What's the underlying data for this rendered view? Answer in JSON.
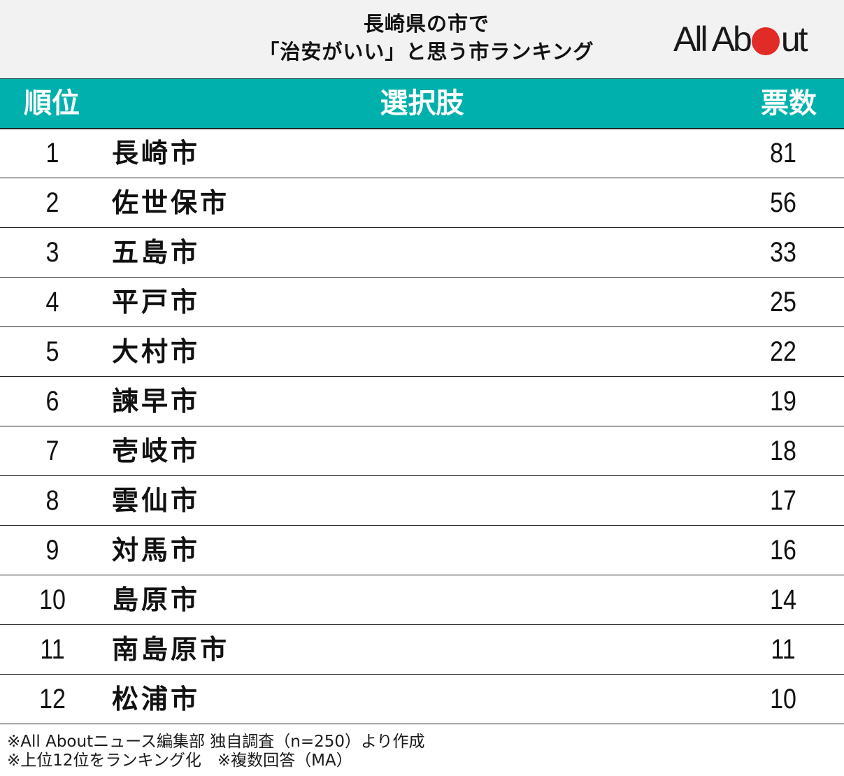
{
  "title": {
    "line1": "長崎県の市で",
    "line2": "「治安がいい」と思う市ランキング"
  },
  "logo": {
    "text_before": "All Ab",
    "text_after": "ut",
    "dot_color": "#e02b27"
  },
  "colors": {
    "header_bg": "#00b0ac",
    "band_bg": "#f2f2f2"
  },
  "table": {
    "headers": {
      "rank": "順位",
      "choice": "選択肢",
      "votes": "票数"
    },
    "rows": [
      {
        "rank": "1",
        "name": "長崎市",
        "votes": "81"
      },
      {
        "rank": "2",
        "name": "佐世保市",
        "votes": "56"
      },
      {
        "rank": "3",
        "name": "五島市",
        "votes": "33"
      },
      {
        "rank": "4",
        "name": "平戸市",
        "votes": "25"
      },
      {
        "rank": "5",
        "name": "大村市",
        "votes": "22"
      },
      {
        "rank": "6",
        "name": "諫早市",
        "votes": "19"
      },
      {
        "rank": "7",
        "name": "壱岐市",
        "votes": "18"
      },
      {
        "rank": "8",
        "name": "雲仙市",
        "votes": "17"
      },
      {
        "rank": "9",
        "name": "対馬市",
        "votes": "16"
      },
      {
        "rank": "10",
        "name": "島原市",
        "votes": "14"
      },
      {
        "rank": "11",
        "name": "南島原市",
        "votes": "11"
      },
      {
        "rank": "12",
        "name": "松浦市",
        "votes": "10"
      }
    ]
  },
  "notes": {
    "line1": "※All Aboutニュース編集部 独自調査（n=250）より作成",
    "line2": "※上位12位をランキング化　※複数回答（MA）"
  },
  "chart_data": {
    "type": "table",
    "title": "長崎県の市で「治安がいい」と思う市ランキング",
    "columns": [
      "順位",
      "選択肢",
      "票数"
    ],
    "categories": [
      "長崎市",
      "佐世保市",
      "五島市",
      "平戸市",
      "大村市",
      "諫早市",
      "壱岐市",
      "雲仙市",
      "対馬市",
      "島原市",
      "南島原市",
      "松浦市"
    ],
    "ranks": [
      1,
      2,
      3,
      4,
      5,
      6,
      7,
      8,
      9,
      10,
      11,
      12
    ],
    "values": [
      81,
      56,
      33,
      25,
      22,
      19,
      18,
      17,
      16,
      14,
      11,
      10
    ],
    "notes": [
      "※All Aboutニュース編集部 独自調査（n=250）より作成",
      "※上位12位をランキング化　※複数回答（MA）"
    ],
    "sample_size": 250
  }
}
